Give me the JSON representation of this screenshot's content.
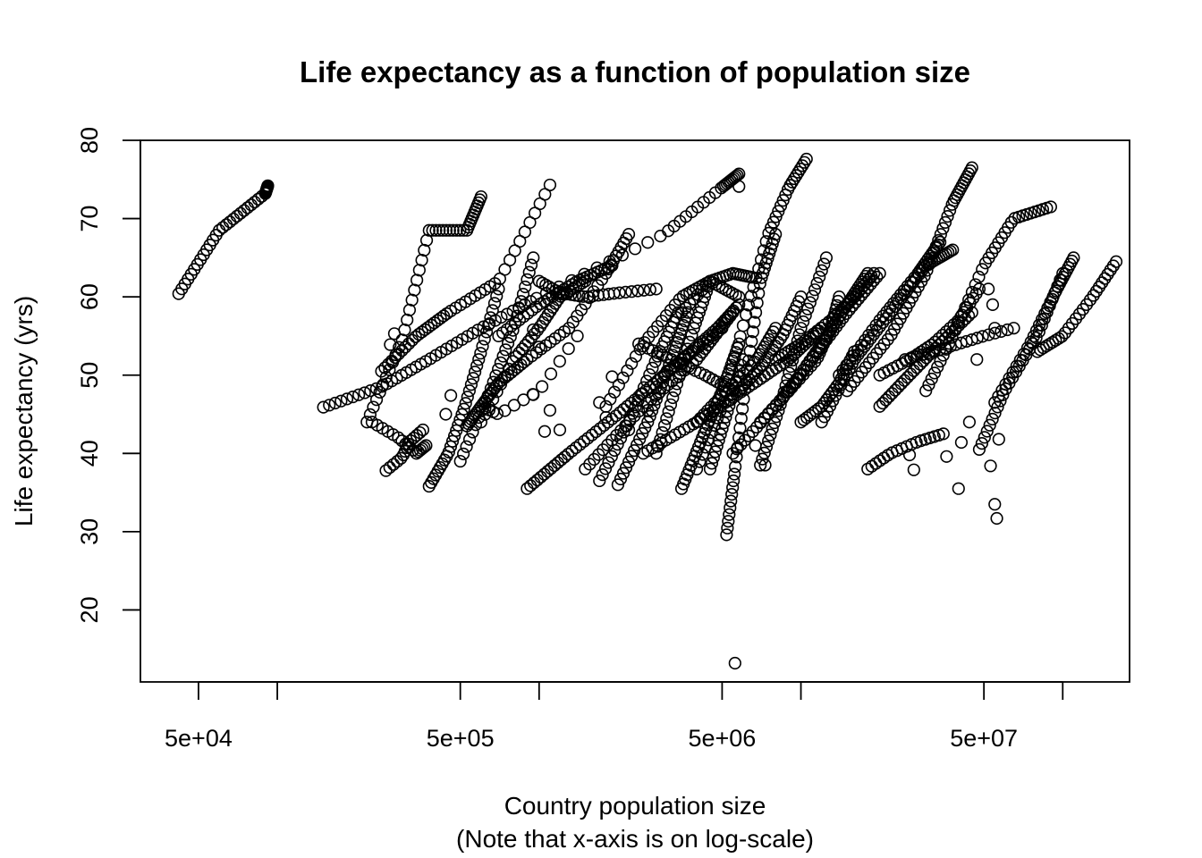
{
  "chart_data": {
    "type": "scatter",
    "title": "Life expectancy as a function of population size",
    "xlabel": "Country population size",
    "xlabel_note": "(Note that x-axis is on log-scale)",
    "ylabel": "Life expectancy (yrs)",
    "x_scale": "log",
    "xlim": [
      30000,
      180000000
    ],
    "ylim": [
      10.8,
      80
    ],
    "x_ticks": [
      50000,
      100000,
      500000,
      1000000,
      5000000,
      10000000,
      50000000,
      100000000
    ],
    "x_tick_labels": [
      {
        "value": 50000,
        "label": "5e+04"
      },
      {
        "value": 500000,
        "label": "5e+05"
      },
      {
        "value": 5000000,
        "label": "5e+06"
      },
      {
        "value": 50000000,
        "label": "5e+07"
      }
    ],
    "y_ticks": [
      20,
      30,
      40,
      50,
      60,
      70,
      80
    ],
    "y_tick_labels": [
      "20",
      "30",
      "40",
      "50",
      "60",
      "70",
      "80"
    ],
    "marker": "open-circle",
    "marker_color": "#000000",
    "grid": false,
    "legend": "none",
    "series": [
      {
        "x": [
          42000,
          60000,
          90000,
          92000
        ],
        "y": [
          60.4,
          68.5,
          73.2,
          74.2
        ],
        "n": 40
      },
      {
        "x": [
          150000,
          250000,
          380000,
          600000,
          1000000,
          3000000,
          5000000,
          5800000
        ],
        "y": [
          45.9,
          48.5,
          52.0,
          56.0,
          60.0,
          68.0,
          74.0,
          75.7
        ],
        "n": 70
      },
      {
        "x": [
          220000,
          300000,
          380000,
          530000,
          600000
        ],
        "y": [
          44.0,
          54.5,
          68.5,
          68.5,
          72.8
        ],
        "n": 45
      },
      {
        "x": [
          230000,
          290000,
          340000,
          370000
        ],
        "y": [
          44.0,
          42.0,
          40.0,
          41.0
        ],
        "n": 16
      },
      {
        "x": [
          260000,
          300000,
          320000,
          360000
        ],
        "y": [
          37.8,
          39.5,
          41.5,
          43.0
        ],
        "n": 14
      },
      {
        "x": [
          250000,
          340000,
          450000,
          700000,
          1100000
        ],
        "y": [
          50.5,
          55.0,
          58.0,
          62.0,
          74.3
        ],
        "n": 42
      },
      {
        "x": [
          380000,
          450000,
          520000,
          600000,
          700000
        ],
        "y": [
          35.8,
          40.0,
          46.0,
          53.0,
          61.0
        ],
        "n": 36
      },
      {
        "x": [
          500000,
          650000,
          800000,
          950000
        ],
        "y": [
          39.0,
          48.0,
          56.0,
          65.0
        ],
        "n": 30
      },
      {
        "x": [
          530000,
          600000,
          700000,
          900000,
          1300000,
          1800000,
          2200000
        ],
        "y": [
          43.5,
          46.0,
          49.0,
          52.0,
          56.0,
          63.0,
          68.0
        ],
        "n": 55
      },
      {
        "x": [
          600000,
          800000,
          1000000,
          1200000,
          1500000
        ],
        "y": [
          44.0,
          52.0,
          56.0,
          60.0,
          62.0
        ],
        "n": 34
      },
      {
        "x": [
          900000,
          1300000,
          2000000,
          3000000,
          5000000
        ],
        "y": [
          35.5,
          40.0,
          45.0,
          50.0,
          56.0
        ],
        "n": 50
      },
      {
        "x": [
          2000000,
          2600000,
          3200000,
          3700000
        ],
        "y": [
          36.0,
          44.0,
          52.0,
          58.0
        ],
        "n": 34
      },
      {
        "x": [
          1500000,
          2500000,
          4000000,
          5500000
        ],
        "y": [
          38.0,
          46.0,
          52.0,
          58.0
        ],
        "n": 40
      },
      {
        "x": [
          3500000,
          4200000,
          5000000,
          5800000
        ],
        "y": [
          35.5,
          42.0,
          48.0,
          54.0
        ],
        "n": 34
      },
      {
        "x": [
          5200000,
          5600000,
          6200000,
          7000000,
          8000000
        ],
        "y": [
          29.6,
          38.0,
          50.0,
          62.0,
          68.0
        ],
        "n": 40
      },
      {
        "x": [
          4000000,
          5000000,
          6200000,
          7500000,
          9000000,
          10500000
        ],
        "y": [
          38.0,
          46.0,
          58.0,
          68.0,
          74.0,
          77.6
        ],
        "n": 44
      },
      {
        "x": [
          4500000,
          5200000,
          6000000
        ],
        "y": [
          38.0,
          45.0,
          52.0
        ],
        "n": 20
      },
      {
        "x": [
          7000000,
          8500000,
          10000000,
          12500000
        ],
        "y": [
          38.5,
          47.0,
          56.0,
          65.0
        ],
        "n": 34
      },
      {
        "x": [
          2500000,
          4000000,
          6000000,
          9000000,
          12000000
        ],
        "y": [
          40.0,
          44.0,
          48.0,
          52.0,
          56.0
        ],
        "n": 48
      },
      {
        "x": [
          12000000,
          16000000,
          22000000,
          30000000,
          38000000
        ],
        "y": [
          44.0,
          52.0,
          58.0,
          64.0,
          66.0
        ],
        "n": 48
      },
      {
        "x": [
          15000000,
          22000000,
          30000000,
          38000000,
          45000000
        ],
        "y": [
          48.0,
          55.0,
          63.0,
          72.0,
          76.5
        ],
        "n": 48
      },
      {
        "x": [
          18000000,
          22000000,
          28000000,
          35000000
        ],
        "y": [
          38.0,
          40.0,
          41.5,
          42.5
        ],
        "n": 18
      },
      {
        "x": [
          25000000,
          32000000,
          40000000,
          50000000,
          65000000
        ],
        "y": [
          52.0,
          53.0,
          54.0,
          55.0,
          56.0
        ],
        "n": 20
      },
      {
        "x": [
          48000000,
          60000000,
          80000000,
          100000000
        ],
        "y": [
          40.5,
          48.0,
          55.0,
          63.0
        ],
        "n": 30
      },
      {
        "x": [
          55000000,
          75000000,
          95000000,
          110000000
        ],
        "y": [
          46.5,
          54.0,
          61.0,
          65.0
        ],
        "n": 30
      },
      {
        "x": [
          80000000,
          100000000,
          130000000,
          160000000
        ],
        "y": [
          53.0,
          55.0,
          60.0,
          64.5
        ],
        "n": 26
      },
      {
        "x": [
          30000000,
          38000000,
          50000000,
          65000000,
          90000000
        ],
        "y": [
          48.0,
          55.0,
          64.0,
          70.0,
          71.5
        ],
        "n": 38
      },
      {
        "x": [
          14000000,
          20000000,
          28000000,
          34000000
        ],
        "y": [
          50.0,
          57.0,
          63.0,
          67.0
        ],
        "n": 34
      },
      {
        "x": [
          9000000,
          12000000,
          15000000,
          18000000
        ],
        "y": [
          48.0,
          54.0,
          59.0,
          63.0
        ],
        "n": 34
      },
      {
        "x": [
          20000000,
          26000000,
          34000000,
          45000000
        ],
        "y": [
          46.0,
          50.0,
          54.0,
          58.0
        ],
        "n": 30
      },
      {
        "x": [
          5500000,
          8000000,
          11000000,
          15000000,
          20000000
        ],
        "y": [
          40.0,
          46.0,
          52.0,
          58.0,
          63.0
        ],
        "n": 44
      },
      {
        "x": [
          1800000,
          2500000,
          3500000,
          4500000,
          5800000
        ],
        "y": [
          46.0,
          54.0,
          60.0,
          62.0,
          60.0
        ],
        "n": 36
      },
      {
        "x": [
          700000,
          1000000,
          1400000,
          1900000
        ],
        "y": [
          55.0,
          59.0,
          62.0,
          64.0
        ],
        "n": 30
      },
      {
        "x": [
          1700000,
          2200000,
          2800000,
          3400000
        ],
        "y": [
          36.5,
          44.0,
          52.0,
          58.0
        ],
        "n": 30
      },
      {
        "x": [
          2800000,
          3300000,
          3900000,
          4500000
        ],
        "y": [
          40.0,
          48.0,
          56.0,
          62.0
        ],
        "n": 28
      },
      {
        "x": [
          7000000,
          9000000,
          11500000,
          13000000,
          14000000
        ],
        "y": [
          44.0,
          48.0,
          52.0,
          56.0,
          60.0
        ],
        "n": 30
      },
      {
        "x": [
          600000,
          700000,
          1000000,
          1400000
        ],
        "y": [
          46.0,
          45.0,
          48.0,
          55.0
        ],
        "n": 14
      },
      {
        "x": [
          8000000,
          10000000,
          13000000,
          16000000,
          19000000
        ],
        "y": [
          52.0,
          54.0,
          57.0,
          60.0,
          63.0
        ],
        "n": 32
      },
      {
        "x": [
          4000000,
          5200000,
          6800000,
          8000000
        ],
        "y": [
          44.0,
          48.0,
          52.0,
          56.0
        ],
        "n": 26
      },
      {
        "x": [
          3000000,
          3800000,
          4800000,
          5800000
        ],
        "y": [
          50.0,
          53.0,
          56.0,
          59.0
        ],
        "n": 24
      },
      {
        "x": [
          10000000,
          12000000,
          14000000,
          16000000
        ],
        "y": [
          44.0,
          46.0,
          49.0,
          53.0
        ],
        "n": 22
      },
      {
        "x": [
          5800000,
          7000000,
          8500000,
          10000000
        ],
        "y": [
          48.0,
          51.0,
          55.0,
          60.0
        ],
        "n": 26
      },
      {
        "x": [
          20000000,
          26000000,
          32000000,
          40000000,
          48000000
        ],
        "y": [
          50.0,
          52.0,
          54.0,
          57.0,
          61.0
        ],
        "n": 28
      },
      {
        "x": [
          1000000,
          1200000,
          1500000,
          2000000,
          2800000
        ],
        "y": [
          62.0,
          60.5,
          60.0,
          60.5,
          61.0
        ],
        "n": 26
      },
      {
        "x": [
          2400000,
          3200000,
          4300000,
          5500000
        ],
        "y": [
          54.0,
          52.0,
          50.0,
          48.0
        ],
        "n": 22
      },
      {
        "x": [
          3500000,
          4500000,
          5500000,
          6500000
        ],
        "y": [
          58.0,
          62.0,
          63.0,
          62.5
        ],
        "n": 22
      }
    ],
    "scattered_points": [
      {
        "x": 5600000,
        "y": 13.2
      },
      {
        "x": 5800000,
        "y": 74.1
      },
      {
        "x": 40000000,
        "y": 35.5
      },
      {
        "x": 53000000,
        "y": 38.4
      },
      {
        "x": 55000000,
        "y": 33.5
      },
      {
        "x": 56000000,
        "y": 31.7
      },
      {
        "x": 57000000,
        "y": 41.8
      },
      {
        "x": 36000000,
        "y": 39.6
      },
      {
        "x": 26000000,
        "y": 39.8
      },
      {
        "x": 27000000,
        "y": 37.9
      },
      {
        "x": 41000000,
        "y": 41.4
      },
      {
        "x": 44000000,
        "y": 44.0
      },
      {
        "x": 47000000,
        "y": 52.0
      },
      {
        "x": 54000000,
        "y": 59.0
      },
      {
        "x": 52000000,
        "y": 61.0
      },
      {
        "x": 55000000,
        "y": 56.0
      },
      {
        "x": 280000,
        "y": 55.3
      },
      {
        "x": 270000,
        "y": 53.9
      },
      {
        "x": 1000000,
        "y": 53.6
      },
      {
        "x": 950000,
        "y": 55.8
      },
      {
        "x": 1700000,
        "y": 46.5
      },
      {
        "x": 1800000,
        "y": 44.6
      },
      {
        "x": 2200000,
        "y": 43.0
      },
      {
        "x": 1900000,
        "y": 49.8
      },
      {
        "x": 2800000,
        "y": 48.5
      },
      {
        "x": 7300000,
        "y": 38.5
      },
      {
        "x": 6700000,
        "y": 41.0
      },
      {
        "x": 1100000,
        "y": 45.5
      },
      {
        "x": 1050000,
        "y": 42.8
      },
      {
        "x": 2600000,
        "y": 45.5
      },
      {
        "x": 1200000,
        "y": 43.0
      },
      {
        "x": 440000,
        "y": 45.0
      },
      {
        "x": 460000,
        "y": 47.4
      },
      {
        "x": 950000,
        "y": 47.5
      }
    ]
  }
}
